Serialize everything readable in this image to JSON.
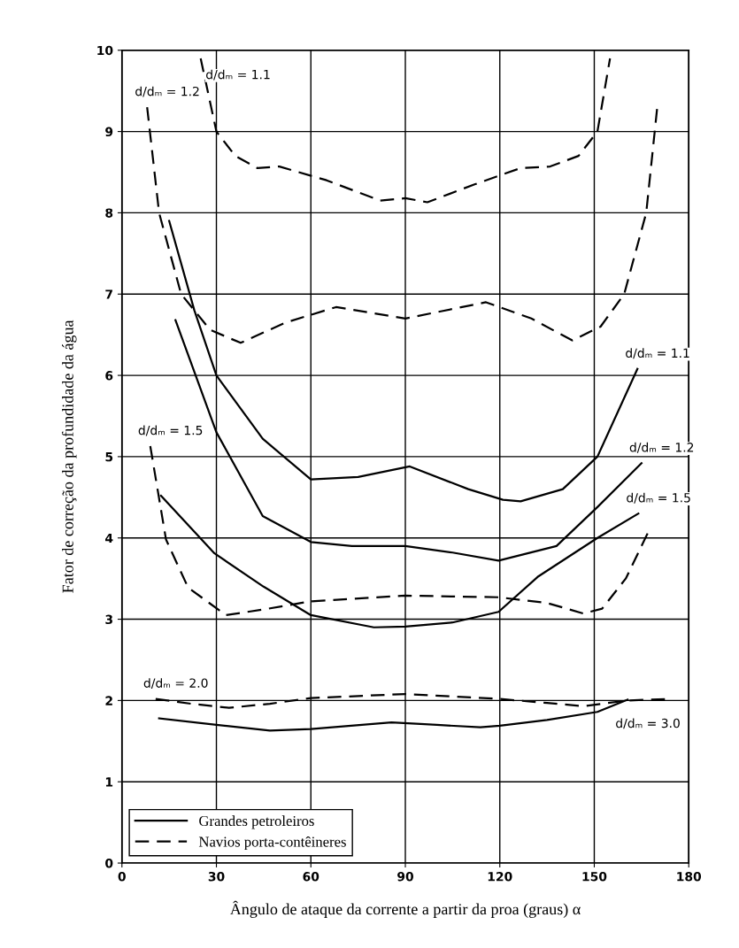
{
  "chart_data": {
    "type": "line",
    "xlabel": "Ângulo de ataque da corrente a partir da proa (graus) α",
    "ylabel": "Fator de correção da profundidade da água",
    "xlim": [
      0,
      180
    ],
    "xticks": [
      0,
      30,
      60,
      90,
      120,
      150,
      180
    ],
    "ylim": [
      0,
      10
    ],
    "yticks": [
      0,
      1,
      2,
      3,
      4,
      5,
      6,
      7,
      8,
      9,
      10
    ],
    "grid": true,
    "legend": "bottom left",
    "marker": "none",
    "series": [
      {
        "name": "Grandes petroleiros",
        "color": "#000000",
        "line_style": "solid",
        "x": [
          15,
          23,
          30,
          44.7,
          60,
          75,
          91.4,
          110,
          121,
          126.6,
          140,
          151,
          163.7
        ],
        "values": [
          7.9,
          6.8,
          6.0,
          5.22,
          4.72,
          4.75,
          4.88,
          4.6,
          4.47,
          4.45,
          4.6,
          5.0,
          6.08
        ]
      },
      {
        "color": "#000000",
        "line_style": "solid",
        "x": [
          17,
          30,
          44.7,
          60,
          73,
          90,
          105,
          119.6,
          138,
          151,
          165
        ],
        "values": [
          6.68,
          5.3,
          4.27,
          3.95,
          3.9,
          3.9,
          3.82,
          3.72,
          3.9,
          4.38,
          4.92
        ]
      },
      {
        "color": "#000000",
        "line_style": "solid",
        "x": [
          12.4,
          29.4,
          45,
          60,
          80,
          90,
          105,
          119.6,
          132,
          151,
          164
        ],
        "values": [
          4.52,
          3.81,
          3.4,
          3.05,
          2.9,
          2.91,
          2.96,
          3.09,
          3.52,
          4.0,
          4.3
        ]
      },
      {
        "color": "#000000",
        "line_style": "solid",
        "x": [
          11.8,
          30,
          47,
          60,
          85.6,
          100,
          113.8,
          120,
          135,
          151,
          160.6
        ],
        "values": [
          1.78,
          1.7,
          1.63,
          1.65,
          1.73,
          1.7,
          1.67,
          1.69,
          1.76,
          1.86,
          2.01
        ]
      },
      {
        "name": "Navios porta-contêineres",
        "color": "#000000",
        "line_style": "dashed",
        "x": [
          25,
          30,
          36,
          43,
          50,
          65,
          82,
          90,
          97,
          112,
          126.6,
          136,
          145,
          151,
          155
        ],
        "values": [
          9.9,
          9.0,
          8.7,
          8.55,
          8.57,
          8.4,
          8.15,
          8.18,
          8.13,
          8.35,
          8.55,
          8.57,
          8.7,
          9.0,
          9.9
        ]
      },
      {
        "color": "#000000",
        "line_style": "dashed",
        "x": [
          8,
          11.8,
          18.8,
          28,
          37.7,
          52,
          68,
          90,
          115.6,
          130,
          143,
          152,
          159.5,
          166.5,
          170
        ],
        "values": [
          9.3,
          8.0,
          7.0,
          6.56,
          6.4,
          6.65,
          6.84,
          6.7,
          6.9,
          6.7,
          6.43,
          6.6,
          7.0,
          8.0,
          9.3
        ]
      },
      {
        "color": "#000000",
        "line_style": "dashed",
        "x": [
          9,
          14,
          21,
          33,
          45,
          60,
          90,
          119.6,
          135,
          146.5,
          152.5,
          160,
          167.6
        ],
        "values": [
          5.13,
          3.98,
          3.39,
          3.05,
          3.12,
          3.22,
          3.29,
          3.27,
          3.2,
          3.07,
          3.13,
          3.5,
          4.11
        ]
      },
      {
        "color": "#000000",
        "line_style": "dashed",
        "x": [
          10.7,
          22,
          34,
          47,
          60,
          90,
          119.6,
          135,
          146.5,
          160.6,
          174.6
        ],
        "values": [
          2.02,
          1.96,
          1.91,
          1.96,
          2.03,
          2.08,
          2.02,
          1.97,
          1.93,
          2.0,
          2.02
        ]
      }
    ],
    "annotations": [
      {
        "text": "d/dₘ = 1.2",
        "x": 8,
        "y": 9.3
      },
      {
        "text": "d/dₘ = 1.1",
        "x": 25,
        "y": 9.9
      },
      {
        "text": "d/dₘ = 1.1",
        "x": 163.7,
        "y": 6.08
      },
      {
        "text": "d/dₘ = 1.5",
        "x": 9,
        "y": 5.13
      },
      {
        "text": "d/dₘ = 1.2",
        "x": 165,
        "y": 4.92
      },
      {
        "text": "d/dₘ = 1.5",
        "x": 164,
        "y": 4.3
      },
      {
        "text": "d/dₘ = 2.0",
        "x": 10.7,
        "y": 2.02
      },
      {
        "text": "d/dₘ = 3.0",
        "x": 160.6,
        "y": 2.01
      }
    ]
  }
}
